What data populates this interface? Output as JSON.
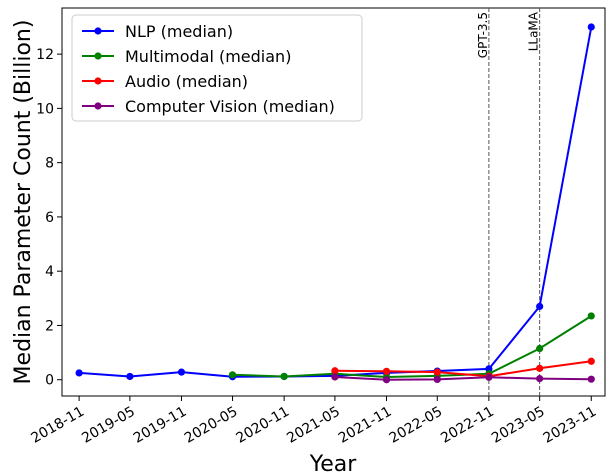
{
  "chart_data": {
    "type": "line",
    "title": "",
    "xlabel": "Year",
    "ylabel": "Median Parameter Count (Billion)",
    "x_ticks": [
      "2018-11",
      "2019-05",
      "2019-11",
      "2020-05",
      "2020-11",
      "2021-05",
      "2021-11",
      "2022-05",
      "2022-11",
      "2023-05",
      "2023-11"
    ],
    "y_ticks": [
      "0",
      "2",
      "4",
      "6",
      "8",
      "10",
      "12"
    ],
    "xlim": [
      "2018-09-01",
      "2023-12-20"
    ],
    "ylim": [
      -0.6,
      13.7
    ],
    "grid": false,
    "legend_position": "top-left",
    "series": [
      {
        "name": "NLP (median)",
        "color": "#0000ff",
        "points": [
          {
            "x": "2018-11-01",
            "y": 0.25
          },
          {
            "x": "2019-05-01",
            "y": 0.12
          },
          {
            "x": "2019-11-01",
            "y": 0.28
          },
          {
            "x": "2020-05-01",
            "y": 0.11
          },
          {
            "x": "2020-11-01",
            "y": 0.12
          },
          {
            "x": "2021-05-01",
            "y": 0.14
          },
          {
            "x": "2021-11-01",
            "y": 0.25
          },
          {
            "x": "2022-05-01",
            "y": 0.32
          },
          {
            "x": "2022-11-01",
            "y": 0.4
          },
          {
            "x": "2023-05-01",
            "y": 2.7
          },
          {
            "x": "2023-11-01",
            "y": 13.0
          }
        ]
      },
      {
        "name": "Multimodal (median)",
        "color": "#008000",
        "points": [
          {
            "x": "2020-05-01",
            "y": 0.18
          },
          {
            "x": "2020-11-01",
            "y": 0.12
          },
          {
            "x": "2021-05-01",
            "y": 0.22
          },
          {
            "x": "2021-11-01",
            "y": 0.1
          },
          {
            "x": "2022-05-01",
            "y": 0.14
          },
          {
            "x": "2022-11-01",
            "y": 0.22
          },
          {
            "x": "2023-05-01",
            "y": 1.15
          },
          {
            "x": "2023-11-01",
            "y": 2.35
          }
        ]
      },
      {
        "name": "Audio (median)",
        "color": "#ff0000",
        "points": [
          {
            "x": "2021-05-01",
            "y": 0.33
          },
          {
            "x": "2021-11-01",
            "y": 0.31
          },
          {
            "x": "2022-05-01",
            "y": 0.28
          },
          {
            "x": "2022-11-01",
            "y": 0.13
          },
          {
            "x": "2023-05-01",
            "y": 0.42
          },
          {
            "x": "2023-11-01",
            "y": 0.68
          }
        ]
      },
      {
        "name": "Computer Vision (median)",
        "color": "#800080",
        "points": [
          {
            "x": "2021-05-01",
            "y": 0.1
          },
          {
            "x": "2021-11-01",
            "y": 0.0
          },
          {
            "x": "2022-05-01",
            "y": 0.01
          },
          {
            "x": "2022-11-01",
            "y": 0.09
          },
          {
            "x": "2023-05-01",
            "y": 0.04
          },
          {
            "x": "2023-11-01",
            "y": 0.02
          }
        ]
      }
    ],
    "annotations": [
      {
        "label": "GPT-3.5",
        "x": "2022-11-01"
      },
      {
        "label": "LLaMA",
        "x": "2023-05-01"
      }
    ]
  }
}
